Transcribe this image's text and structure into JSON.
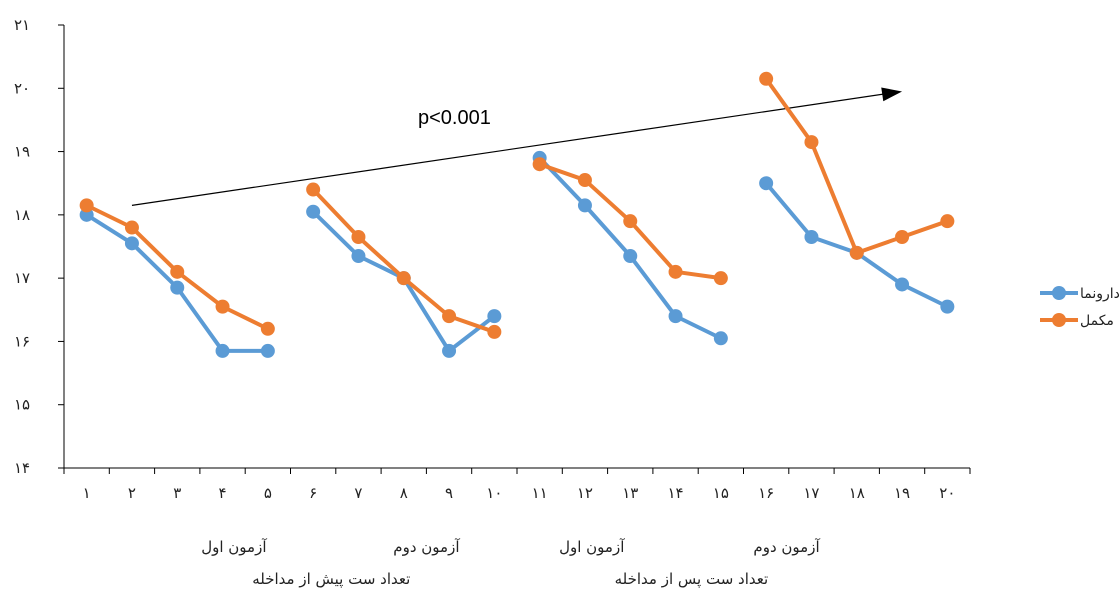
{
  "chart_data": {
    "type": "line",
    "y_tick_labels": [
      "۱۴",
      "۱۵",
      "۱۶",
      "۱۷",
      "۱۸",
      "۱۹",
      "۲۰",
      "۲۱"
    ],
    "ylim": [
      14,
      21
    ],
    "x_tick_labels": [
      "۱",
      "۲",
      "۳",
      "۴",
      "۵",
      "۶",
      "۷",
      "۸",
      "۹",
      "۱۰",
      "۱۱",
      "۱۲",
      "۱۳",
      "۱۴",
      "۱۵",
      "۱۶",
      "۱۷",
      "۱۸",
      "۱۹",
      "۲۰"
    ],
    "group_captions": [
      {
        "line1": "آزمون اول",
        "line2": "تعداد ست پیش از مداخله"
      },
      {
        "line1": "آزمون دوم",
        "line2": ""
      },
      {
        "line1": "آزمون اول",
        "line2": "تعداد ست پس از مداخله"
      },
      {
        "line1": "آزمون دوم",
        "line2": ""
      }
    ],
    "annotation": "p<0.001",
    "series": [
      {
        "name": "دارونما",
        "color": "#5b9bd5",
        "segments": [
          {
            "x": [
              1,
              2,
              3,
              4,
              5
            ],
            "y": [
              18.0,
              17.55,
              16.85,
              15.85,
              15.85
            ]
          },
          {
            "x": [
              6,
              7,
              8,
              9,
              10
            ],
            "y": [
              18.05,
              17.35,
              17.0,
              15.85,
              16.4
            ]
          },
          {
            "x": [
              11,
              12,
              13,
              14,
              15
            ],
            "y": [
              18.9,
              18.15,
              17.35,
              16.4,
              16.05
            ]
          },
          {
            "x": [
              16,
              17,
              18,
              19,
              20
            ],
            "y": [
              18.5,
              17.65,
              17.4,
              16.9,
              16.55
            ]
          }
        ]
      },
      {
        "name": "مکمل",
        "color": "#ed7d31",
        "segments": [
          {
            "x": [
              1,
              2,
              3,
              4,
              5
            ],
            "y": [
              18.15,
              17.8,
              17.1,
              16.55,
              16.2
            ]
          },
          {
            "x": [
              6,
              7,
              8,
              9,
              10
            ],
            "y": [
              18.4,
              17.65,
              17.0,
              16.4,
              16.15
            ]
          },
          {
            "x": [
              11,
              12,
              13,
              14,
              15
            ],
            "y": [
              18.8,
              18.55,
              17.9,
              17.1,
              17.0
            ]
          },
          {
            "x": [
              16,
              17,
              18,
              19,
              20
            ],
            "y": [
              20.15,
              19.15,
              17.4,
              17.65,
              17.9
            ]
          }
        ]
      }
    ],
    "arrow": {
      "from": [
        2,
        18.15
      ],
      "to": [
        19,
        19.95
      ]
    },
    "legend_position": "right"
  }
}
